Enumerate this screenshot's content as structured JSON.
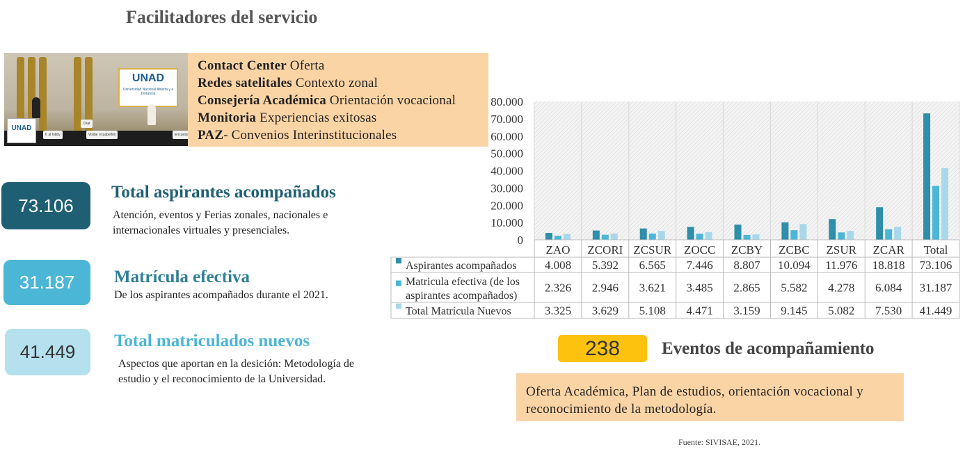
{
  "title": "Facilitadores del servicio",
  "photo": {
    "logo": "UNAD",
    "logo_caption": "Universidad Nacional Abierta y a Distancia",
    "desk_logo": "UNAD",
    "chips": [
      "Chat",
      "Ir al lobby",
      "Visitar el pabellón",
      "Encuesta"
    ]
  },
  "services": [
    {
      "bold": "Contact Center",
      "text": " Oferta"
    },
    {
      "bold": "Redes satelitales",
      "text": " Contexto zonal"
    },
    {
      "bold": "Consejería Académica",
      "text": " Orientación vocacional"
    },
    {
      "bold": "Monitoria",
      "text": " Experiencias exitosas"
    },
    {
      "bold": "PAZ",
      "text": "- Convenios Interinstitucionales"
    }
  ],
  "stats": [
    {
      "value": "73.106",
      "title": "Total aspirantes acompañados",
      "desc": "Atención, eventos y Ferias zonales, nacionales e internacionales virtuales y presenciales.",
      "color": "#1e5f74",
      "title_color": "#1e5f74"
    },
    {
      "value": "31.187",
      "title": "Matrícula efectiva",
      "desc": "De los aspirantes acompañados durante el 2021.",
      "color": "#4cb6d6",
      "title_color": "#2f7f96"
    },
    {
      "value": "41.449",
      "title": "Total matriculados nuevos",
      "desc": "Aspectos que aportan en la desición: Metodología de estudio y el reconocimiento de la Universidad.",
      "color": "#b5e0ee",
      "title_color": "#4cb6d6"
    }
  ],
  "chart_data": {
    "type": "bar",
    "categories": [
      "ZAO",
      "ZCORI",
      "ZCSUR",
      "ZOCC",
      "ZCBY",
      "ZCBC",
      "ZSUR",
      "ZCAR",
      "Total"
    ],
    "series": [
      {
        "name": "Aspirantes acompañados",
        "color": "#2f8ea9",
        "values": [
          4008,
          5392,
          6565,
          7446,
          8807,
          10094,
          11976,
          18818,
          73106
        ],
        "labels": [
          "4.008",
          "5.392",
          "6.565",
          "7.446",
          "8.807",
          "10.094",
          "11.976",
          "18.818",
          "73.106"
        ]
      },
      {
        "name": "Matricula efectiva (de los aspirantes acompañados)",
        "color": "#4cb6d6",
        "values": [
          2326,
          2946,
          3621,
          3485,
          2865,
          5582,
          4278,
          6084,
          31187
        ],
        "labels": [
          "2.326",
          "2.946",
          "3.621",
          "3.485",
          "2.865",
          "5.582",
          "4.278",
          "6.084",
          "31.187"
        ]
      },
      {
        "name": "Total Matrícula Nuevos",
        "color": "#a8d8ea",
        "values": [
          3325,
          3629,
          5108,
          4471,
          3159,
          9145,
          5082,
          7530,
          41449
        ],
        "labels": [
          "3.325",
          "3.629",
          "5.108",
          "4.471",
          "3.159",
          "9.145",
          "5.082",
          "7.530",
          "41.449"
        ]
      }
    ],
    "series_label_lines": [
      [
        "Aspirantes acompañados"
      ],
      [
        "Matricula efectiva (de los",
        "aspirantes acompañados)"
      ],
      [
        "Total Matrícula Nuevos"
      ]
    ],
    "ylim": [
      0,
      80000
    ],
    "yticks": [
      "0",
      "10.000",
      "20.000",
      "30.000",
      "40.000",
      "50.000",
      "60.000",
      "70.000",
      "80.000"
    ],
    "grid": true,
    "data_table": true
  },
  "events": {
    "count": "238",
    "label": "Eventos de acompañamiento",
    "topics": "Oferta Académica, Plan de estudios, orientación vocacional y reconocimiento de la metodología."
  },
  "source": "Fuente: SIVISAE, 2021."
}
